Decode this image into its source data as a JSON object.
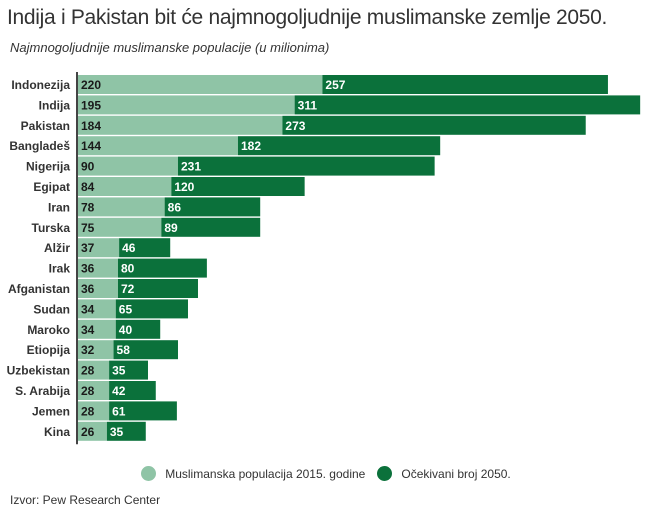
{
  "chart_data": {
    "type": "bar",
    "orientation": "horizontal",
    "stacked": true,
    "title": "Indija i Pakistan bit će najmnogoljudnije muslimanske zemlje 2050.",
    "subtitle": "Najmnogoljudnije muslimanske populacije (u milionima)",
    "xlabel": "",
    "ylabel": "",
    "xlim": [
      0,
      510
    ],
    "grid": false,
    "legend_position": "bottom",
    "categories": [
      "Indonezija",
      "Indija",
      "Pakistan",
      "Bangladeš",
      "Nigerija",
      "Egipat",
      "Iran",
      "Turska",
      "Alžir",
      "Irak",
      "Afganistan",
      "Sudan",
      "Maroko",
      "Etiopija",
      "Uzbekistan",
      "S. Arabija",
      "Jemen",
      "Kina"
    ],
    "series": [
      {
        "name": "Muslimanska populacija 2015. godine",
        "color": "#8fc4a6",
        "label_color": "#1a1a1a",
        "values": [
          220,
          195,
          184,
          144,
          90,
          84,
          78,
          75,
          37,
          36,
          36,
          34,
          34,
          32,
          28,
          28,
          28,
          26
        ]
      },
      {
        "name": "Očekivani broj 2050.",
        "color": "#0b713b",
        "label_color": "#ffffff",
        "values": [
          257,
          311,
          273,
          182,
          231,
          120,
          86,
          89,
          46,
          80,
          72,
          65,
          40,
          58,
          35,
          42,
          61,
          35
        ]
      }
    ],
    "source": "Izvor: Pew Research Center"
  }
}
